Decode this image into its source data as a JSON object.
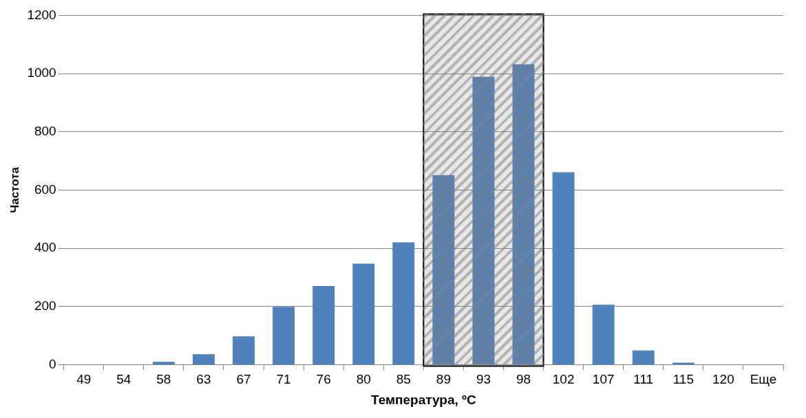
{
  "chart_data": {
    "type": "bar",
    "xlabel": "Температура, ºC",
    "ylabel": "Частота",
    "categories": [
      "49",
      "54",
      "58",
      "63",
      "67",
      "71",
      "76",
      "80",
      "85",
      "89",
      "93",
      "98",
      "102",
      "107",
      "111",
      "115",
      "120",
      "Еще"
    ],
    "values": [
      0,
      0,
      10,
      36,
      97,
      199,
      270,
      347,
      420,
      651,
      989,
      1032,
      661,
      206,
      49,
      7,
      0,
      0
    ],
    "color": "#4f81bd",
    "ylim": [
      0,
      1200
    ],
    "yticks": [
      0,
      200,
      400,
      600,
      800,
      1000,
      1200
    ],
    "grid": "y",
    "legend": false,
    "bands": [
      {
        "axis": "x",
        "from": "89",
        "to": "98",
        "color": "#808080"
      }
    ]
  }
}
